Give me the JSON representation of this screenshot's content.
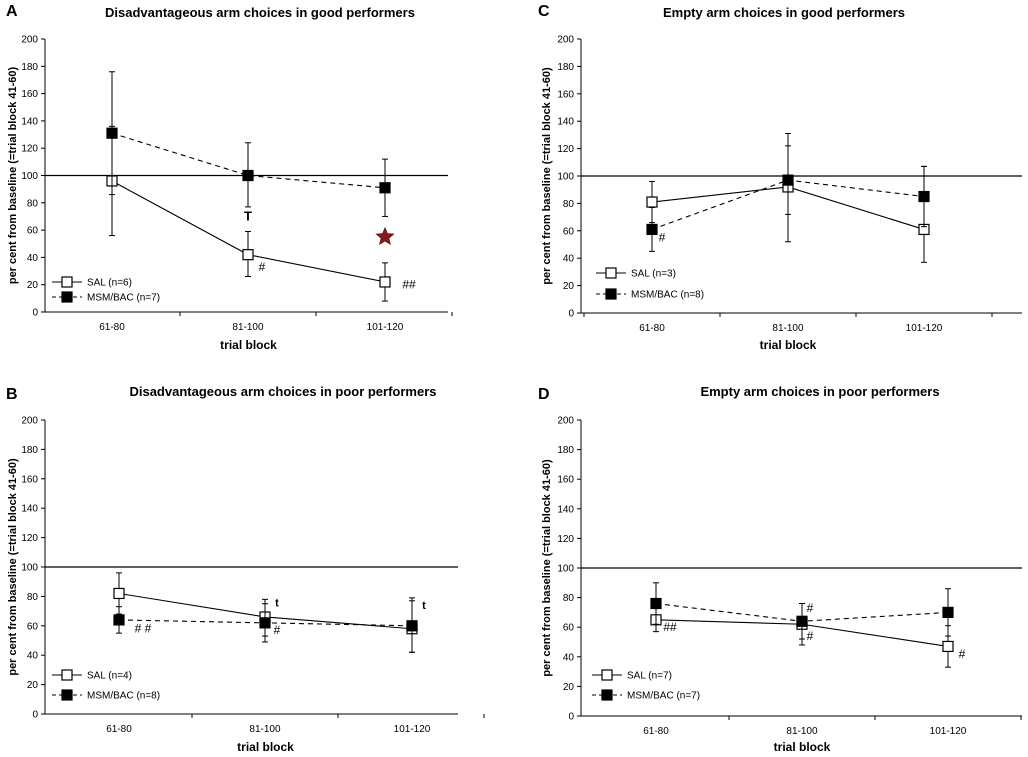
{
  "chart_data": [
    {
      "panel_label": "A",
      "type": "line",
      "title": "Disadvantageous arm choices in good performers",
      "xlabel": "trial block",
      "ylabel": "per cent from baseline (=trial block 41-60)",
      "ylim": [
        0,
        200
      ],
      "yticks": [
        "0",
        "20",
        "40",
        "60",
        "80",
        "100",
        "120",
        "140",
        "160",
        "180",
        "200"
      ],
      "categories": [
        "61-80",
        "81-100",
        "101-120"
      ],
      "reference_line": 100,
      "series": [
        {
          "name": "SAL (n=6)",
          "marker": "open-square",
          "line": "solid",
          "values": [
            96,
            42,
            22
          ],
          "err_low": [
            56,
            26,
            8
          ],
          "err_high": [
            136,
            59,
            36
          ]
        },
        {
          "name": "MSM/BAC (n=7)",
          "marker": "filled-square",
          "line": "dashed",
          "values": [
            131,
            100,
            91
          ],
          "err_low": [
            86,
            77,
            70
          ],
          "err_high": [
            176,
            124,
            112
          ]
        }
      ],
      "annotations": [
        {
          "text": "T",
          "cat": 1,
          "y": 70,
          "bold": true,
          "dx": 0,
          "size": 13
        },
        {
          "text": "#",
          "cat": 1,
          "y": 33,
          "bold": false,
          "dx": 14,
          "size": 12
        },
        {
          "text": "##",
          "cat": 2,
          "y": 20,
          "bold": false,
          "dx": 24,
          "size": 12
        }
      ],
      "star": {
        "cat": 2,
        "y": 55,
        "color": "#8b1a1a"
      }
    },
    {
      "panel_label": "B",
      "type": "line",
      "title": "Disadvantageous arm choices in poor performers",
      "xlabel": "trial block",
      "ylabel": "per cent from baseline (=trial block 41-60)",
      "ylim": [
        0,
        200
      ],
      "yticks": [
        "0",
        "20",
        "40",
        "60",
        "80",
        "100",
        "120",
        "140",
        "160",
        "180",
        "200"
      ],
      "categories": [
        "61-80",
        "81-100",
        "101-120"
      ],
      "reference_line": 100,
      "series": [
        {
          "name": "SAL (n=4)",
          "marker": "open-square",
          "line": "solid",
          "values": [
            82,
            66,
            58
          ],
          "err_low": [
            68,
            53,
            42
          ],
          "err_high": [
            96,
            78,
            79
          ]
        },
        {
          "name": "MSM/BAC (n=8)",
          "marker": "filled-square",
          "line": "dashed",
          "values": [
            64,
            62,
            60
          ],
          "err_low": [
            55,
            49,
            42
          ],
          "err_high": [
            73,
            75,
            77
          ]
        }
      ],
      "annotations": [
        {
          "text": "# #",
          "cat": 0,
          "y": 58,
          "bold": false,
          "dx": 24,
          "size": 12
        },
        {
          "text": "t",
          "cat": 1,
          "y": 76,
          "bold": true,
          "dx": 12,
          "size": 11
        },
        {
          "text": "#",
          "cat": 1,
          "y": 57,
          "bold": false,
          "dx": 12,
          "size": 12
        },
        {
          "text": "t",
          "cat": 2,
          "y": 74,
          "bold": true,
          "dx": 12,
          "size": 11
        }
      ]
    },
    {
      "panel_label": "C",
      "type": "line",
      "title": "Empty arm choices in good performers",
      "xlabel": "trial block",
      "ylabel": "per cent from baseline (=trial block 41-60)",
      "ylim": [
        0,
        200
      ],
      "yticks": [
        "0",
        "20",
        "40",
        "60",
        "80",
        "100",
        "120",
        "140",
        "160",
        "180",
        "200"
      ],
      "categories": [
        "61-80",
        "81-100",
        "101-120"
      ],
      "reference_line": 100,
      "series": [
        {
          "name": "SAL (n=3)",
          "marker": "open-square",
          "line": "solid",
          "values": [
            81,
            92,
            61
          ],
          "err_low": [
            66,
            52,
            37
          ],
          "err_high": [
            96,
            131,
            107
          ]
        },
        {
          "name": "MSM/BAC (n=8)",
          "marker": "filled-square",
          "line": "dashed",
          "values": [
            61,
            97,
            85
          ],
          "err_low": [
            45,
            72,
            63
          ],
          "err_high": [
            77,
            122,
            107
          ]
        }
      ],
      "annotations": [
        {
          "text": "#",
          "cat": 0,
          "y": 55,
          "bold": false,
          "dx": 10,
          "size": 12
        }
      ]
    },
    {
      "panel_label": "D",
      "type": "line",
      "title": "Empty arm choices in poor performers",
      "xlabel": "trial block",
      "ylabel": "per cent from baseline (=trial block 41-60)",
      "ylim": [
        0,
        200
      ],
      "yticks": [
        "0",
        "20",
        "40",
        "60",
        "80",
        "100",
        "120",
        "140",
        "160",
        "180",
        "200"
      ],
      "categories": [
        "61-80",
        "81-100",
        "101-120"
      ],
      "reference_line": 100,
      "series": [
        {
          "name": "SAL (n=7)",
          "marker": "open-square",
          "line": "solid",
          "values": [
            65,
            62,
            47
          ],
          "err_low": [
            57,
            48,
            33
          ],
          "err_high": [
            76,
            76,
            61
          ]
        },
        {
          "name": "MSM/BAC (n=7)",
          "marker": "filled-square",
          "line": "dashed",
          "values": [
            76,
            64,
            70
          ],
          "err_low": [
            62,
            52,
            54
          ],
          "err_high": [
            90,
            76,
            86
          ]
        }
      ],
      "annotations": [
        {
          "text": "##",
          "cat": 0,
          "y": 60,
          "bold": false,
          "dx": 14,
          "size": 12
        },
        {
          "text": "#",
          "cat": 1,
          "y": 73,
          "bold": false,
          "dx": 8,
          "size": 12
        },
        {
          "text": "#",
          "cat": 1,
          "y": 54,
          "bold": false,
          "dx": 8,
          "size": 12
        },
        {
          "text": "#",
          "cat": 2,
          "y": 42,
          "bold": false,
          "dx": 14,
          "size": 12
        }
      ]
    }
  ]
}
